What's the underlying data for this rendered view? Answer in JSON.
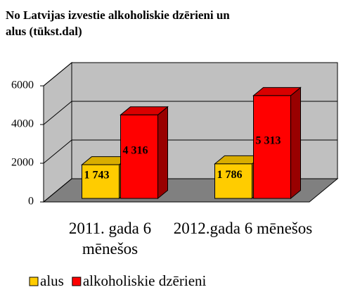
{
  "chart_data": {
    "type": "bar3d",
    "title": "No Latvijas izvestie alkoholiskie dzērieni un alus (tūkst.dal)",
    "categories": [
      "2011. gada 6 mēnešos",
      "2012.gada 6 mēnešos"
    ],
    "series": [
      {
        "name": "alus",
        "color": "#ffcc00",
        "values": [
          1743,
          1786
        ],
        "value_labels": [
          "1 743",
          "1 786"
        ]
      },
      {
        "name": "alkoholiskie dzērieni",
        "color": "#ff0000",
        "values": [
          4316,
          5313
        ],
        "value_labels": [
          "4 316",
          "5 313"
        ]
      }
    ],
    "ylim": [
      0,
      6000
    ],
    "yticks": [
      0,
      2000,
      4000,
      6000
    ],
    "grid": true,
    "legend": "bottom"
  }
}
